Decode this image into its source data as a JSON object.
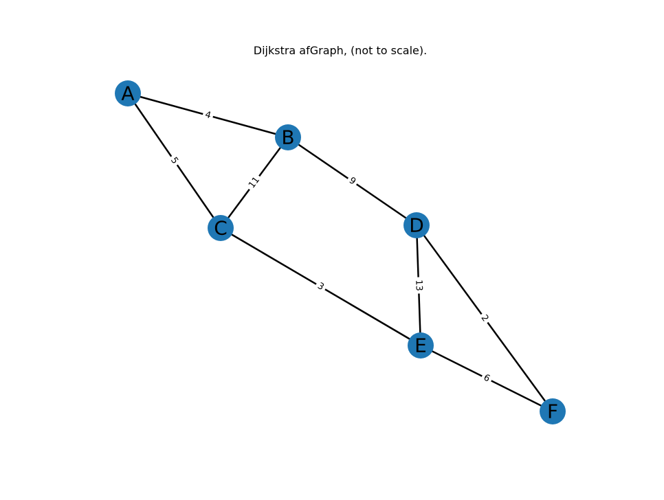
{
  "title": "Dijkstra afGraph, (not to scale).",
  "colors": {
    "node_fill": "#1f77b4",
    "edge": "#000000",
    "background": "#ffffff"
  },
  "graph": {
    "nodes": [
      {
        "id": "A",
        "label": "A"
      },
      {
        "id": "B",
        "label": "B"
      },
      {
        "id": "C",
        "label": "C"
      },
      {
        "id": "D",
        "label": "D"
      },
      {
        "id": "E",
        "label": "E"
      },
      {
        "id": "F",
        "label": "F"
      }
    ],
    "edges": [
      {
        "from": "A",
        "to": "B",
        "weight": "4"
      },
      {
        "from": "A",
        "to": "C",
        "weight": "5"
      },
      {
        "from": "B",
        "to": "C",
        "weight": "11"
      },
      {
        "from": "B",
        "to": "D",
        "weight": "9"
      },
      {
        "from": "C",
        "to": "E",
        "weight": "3"
      },
      {
        "from": "D",
        "to": "E",
        "weight": "13"
      },
      {
        "from": "D",
        "to": "F",
        "weight": "2"
      },
      {
        "from": "E",
        "to": "F",
        "weight": "6"
      }
    ]
  }
}
